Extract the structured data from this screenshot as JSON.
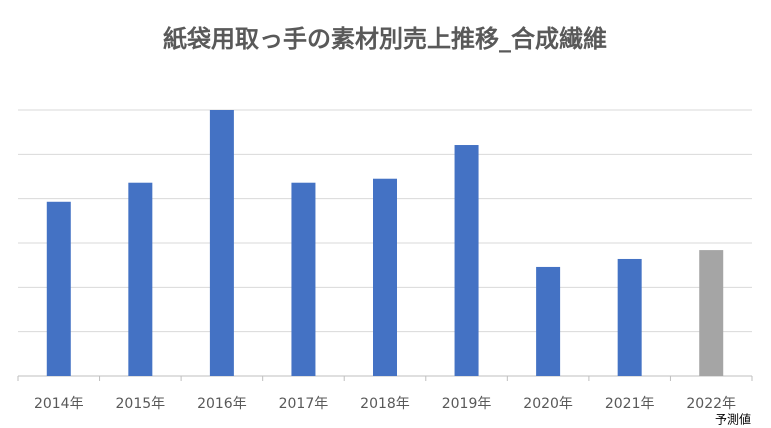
{
  "chart_data": {
    "type": "bar",
    "title": "紙袋用取っ手の素材別売上推移_合成繊維",
    "categories": [
      "2014年",
      "2015年",
      "2016年",
      "2017年",
      "2018年",
      "2019年",
      "2020年",
      "2021年",
      "2022年"
    ],
    "values": [
      3.93,
      4.36,
      6.0,
      4.36,
      4.45,
      5.21,
      2.46,
      2.64,
      2.84
    ],
    "colors": [
      "#4472c4",
      "#4472c4",
      "#4472c4",
      "#4472c4",
      "#4472c4",
      "#4472c4",
      "#4472c4",
      "#4472c4",
      "#a5a5a5"
    ],
    "ylim": [
      0,
      6
    ],
    "yticks": [
      0,
      1,
      2,
      3,
      4,
      5,
      6
    ],
    "ytick_labels": false,
    "grid": true,
    "annotations": [
      "予測値"
    ]
  }
}
